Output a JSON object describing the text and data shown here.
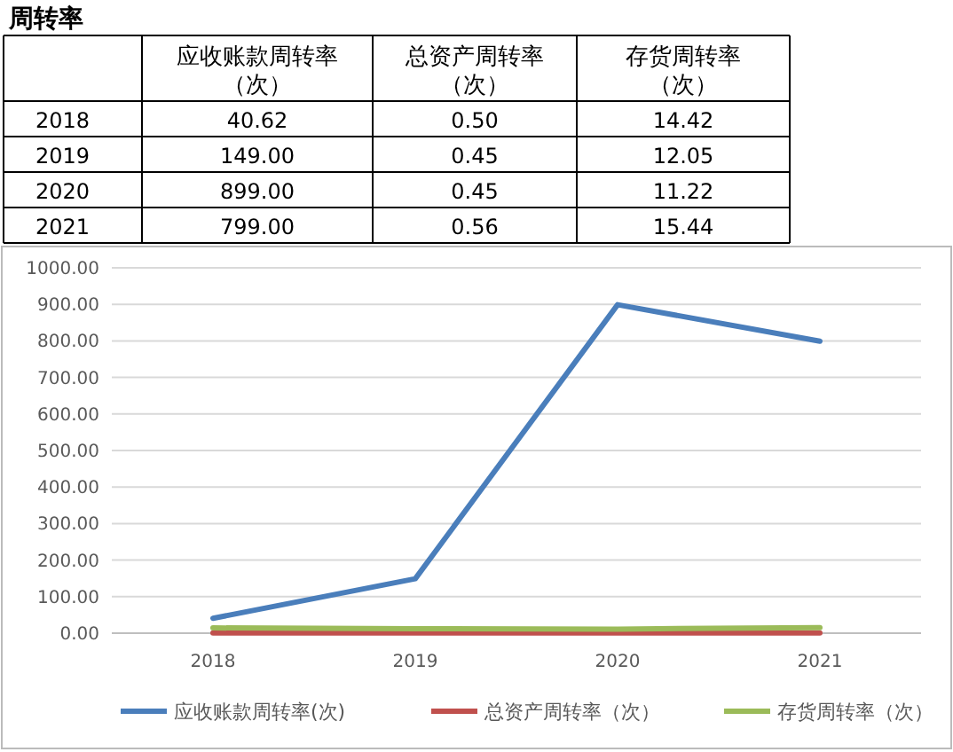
{
  "chart_data": {
    "type": "line",
    "title": "周转率",
    "categories": [
      "2018",
      "2019",
      "2020",
      "2021"
    ],
    "annotations": [
      "应收账款周转率（次）",
      "总资产周转率（次）",
      "存货周转率（次）",
      "40.62",
      "0.50",
      "14.42",
      "149.00",
      "0.45",
      "12.05",
      "899.00",
      "0.45",
      "11.22",
      "799.00",
      "0.56",
      "15.44"
    ],
    "series": [
      {
        "name": "应收账款周转率(次)",
        "color": "#4a7ebb",
        "values": [
          40.62,
          149.0,
          899.0,
          799.0
        ]
      },
      {
        "name": "总资产周转率（次）",
        "color": "#c0504d",
        "values": [
          0.5,
          0.45,
          0.45,
          0.56
        ]
      },
      {
        "name": "存货周转率（次）",
        "color": "#9bbb59",
        "values": [
          14.42,
          12.05,
          11.22,
          15.44
        ]
      }
    ],
    "ylim": [
      0,
      1000
    ],
    "yticks": [
      {
        "value": 0,
        "label": "0.00"
      },
      {
        "value": 100,
        "label": "100.00"
      },
      {
        "value": 200,
        "label": "200.00"
      },
      {
        "value": 300,
        "label": "300.00"
      },
      {
        "value": 400,
        "label": "400.00"
      },
      {
        "value": 500,
        "label": "500.00"
      },
      {
        "value": 600,
        "label": "600.00"
      },
      {
        "value": 700,
        "label": "700.00"
      },
      {
        "value": 800,
        "label": "800.00"
      },
      {
        "value": 900,
        "label": "900.00"
      },
      {
        "value": 1000,
        "label": "1000.00"
      }
    ],
    "grid": "y",
    "legend": "bottom",
    "marker": "none",
    "line_style": "solid"
  }
}
